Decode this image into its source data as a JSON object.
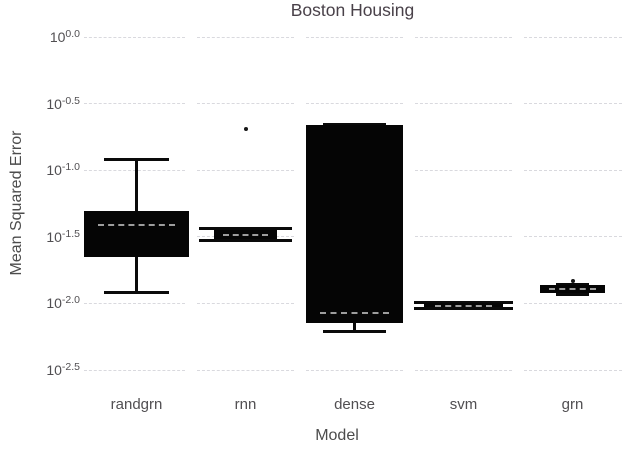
{
  "chart_data": {
    "type": "boxplot",
    "title": "Boston Housing",
    "xlabel": "Model",
    "ylabel": "Mean Squared Error",
    "y_scale": "log10",
    "ylim_exponents": [
      0.0,
      -2.5
    ],
    "grid": "dotted-horizontal",
    "legend": "none",
    "y_ticks": [
      {
        "base": "10",
        "exp": "0.0",
        "value": 0.0
      },
      {
        "base": "10",
        "exp": "-0.5",
        "value": -0.5
      },
      {
        "base": "10",
        "exp": "-1.0",
        "value": -1.0
      },
      {
        "base": "10",
        "exp": "-1.5",
        "value": -1.5
      },
      {
        "base": "10",
        "exp": "-2.0",
        "value": -2.0
      },
      {
        "base": "10",
        "exp": "-2.5",
        "value": -2.5
      }
    ],
    "categories": [
      "randgrn",
      "rnn",
      "dense",
      "svm",
      "grn"
    ],
    "boxes": [
      {
        "name": "randgrn",
        "whisker_low": -1.92,
        "q1": -1.65,
        "median": -1.41,
        "q3": -1.31,
        "whisker_high": -0.92,
        "outliers": [],
        "box_rel_width": 0.97,
        "cap_rel_width": 0.6
      },
      {
        "name": "rnn",
        "whisker_low": -1.53,
        "q1": -1.52,
        "median": -1.49,
        "q3": -1.45,
        "whisker_high": -1.44,
        "outliers": [
          -0.69
        ],
        "box_rel_width": 0.57,
        "cap_rel_width": 0.85
      },
      {
        "name": "dense",
        "whisker_low": -2.21,
        "q1": -2.15,
        "median": -2.07,
        "q3": -0.66,
        "whisker_high": -0.66,
        "outliers": [],
        "box_rel_width": 0.89,
        "cap_rel_width": 0.57
      },
      {
        "name": "svm",
        "whisker_low": -2.04,
        "q1": -2.03,
        "median": -2.02,
        "q3": -2.0,
        "whisker_high": -1.99,
        "outliers": [],
        "box_rel_width": 0.73,
        "cap_rel_width": 0.91
      },
      {
        "name": "grn",
        "whisker_low": -1.93,
        "q1": -1.92,
        "median": -1.89,
        "q3": -1.86,
        "whisker_high": -1.86,
        "outliers": [
          -1.835
        ],
        "box_rel_width": 0.59,
        "cap_rel_width": 0.3
      }
    ]
  },
  "colors": {
    "box_fill": "#050505",
    "whisker": "#0a0a0a",
    "median": "#9d9d9d",
    "grid": "#d9d9de",
    "tick_text": "#514f52",
    "title_text": "#494149",
    "axis_title_text": "#4c4c4c",
    "background": "#ffffff"
  }
}
